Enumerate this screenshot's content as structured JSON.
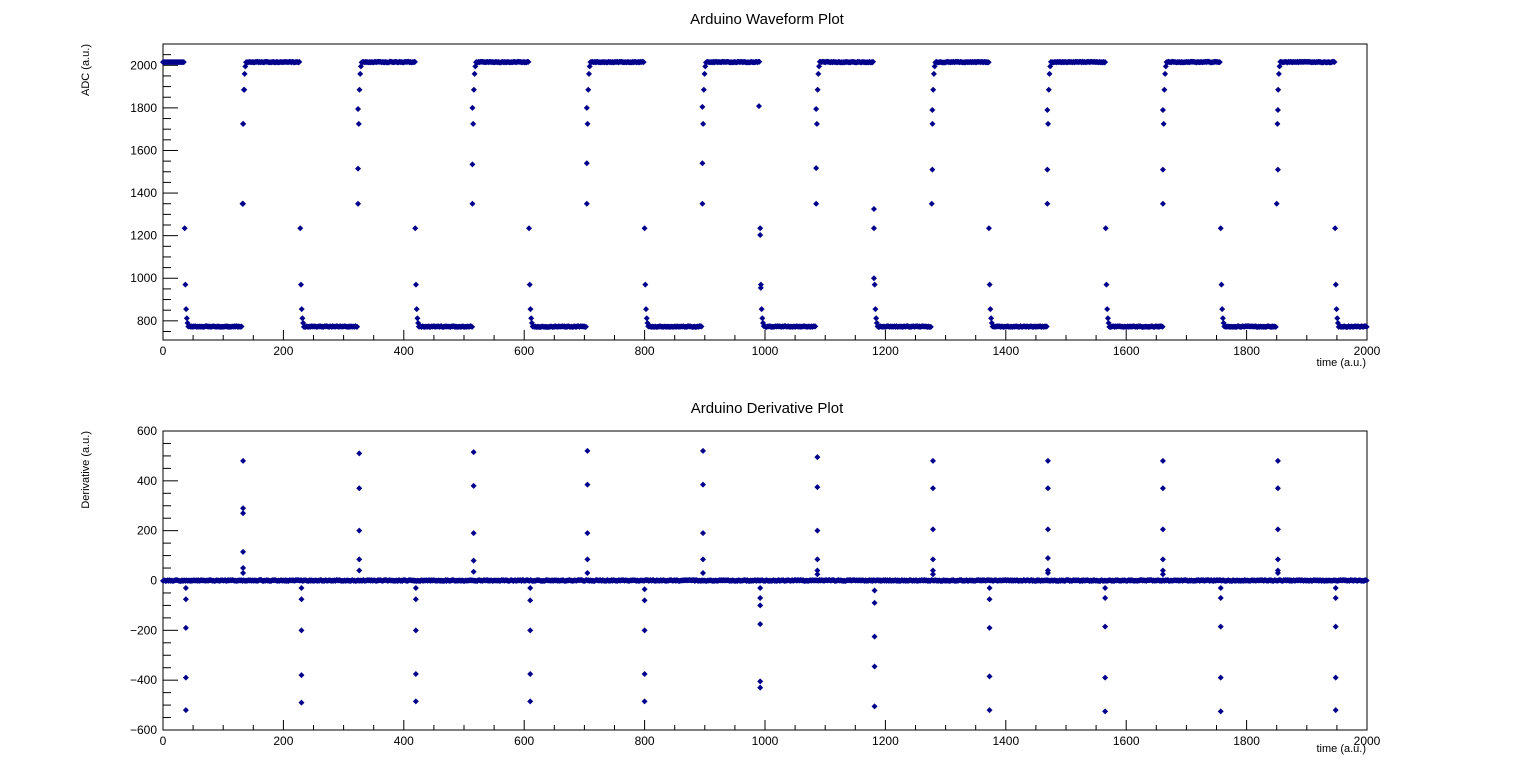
{
  "colors": {
    "marker": "#00008B",
    "frame": "#000000",
    "background": "#ffffff"
  },
  "chart_data": [
    {
      "type": "scatter",
      "title": "Arduino Waveform Plot",
      "xlabel": "time (a.u.)",
      "ylabel": "ADC (a.u.)",
      "xlim": [
        0,
        2000
      ],
      "ylim": [
        710,
        2100
      ],
      "xticks": [
        0,
        200,
        400,
        600,
        800,
        1000,
        1200,
        1400,
        1600,
        1800,
        2000
      ],
      "yticks": [
        800,
        1000,
        1200,
        1400,
        1600,
        1800,
        2000
      ],
      "xtick_labels": [
        "0",
        "200",
        "400",
        "600",
        "800",
        "1000",
        "1200",
        "1400",
        "1600",
        "1800",
        "2000"
      ],
      "ytick_labels": [
        "800",
        "1000",
        "1200",
        "1400",
        "1600",
        "1800",
        "2000"
      ],
      "grid": false,
      "waveform": {
        "high_level": 2015,
        "low_level": 773,
        "fall_times": [
          36,
          228,
          419,
          608,
          800,
          992,
          1181,
          1372,
          1566,
          1757,
          1947
        ],
        "rise_times": [
          132,
          324,
          514,
          704,
          896,
          1085,
          1277,
          1469,
          1661,
          1850
        ],
        "fall_transition_values": [
          1235,
          970,
          855,
          812,
          790
        ],
        "rise_transition_values": [
          1350,
          1725,
          1885,
          1960,
          1995
        ],
        "spike_points": [
          {
            "x": 133,
            "y": 1350
          },
          {
            "x": 133,
            "y": 1725
          },
          {
            "x": 135,
            "y": 1885
          },
          {
            "x": 324,
            "y": 1515
          },
          {
            "x": 324,
            "y": 1795
          },
          {
            "x": 514,
            "y": 1535
          },
          {
            "x": 514,
            "y": 1800
          },
          {
            "x": 704,
            "y": 1540
          },
          {
            "x": 704,
            "y": 1800
          },
          {
            "x": 896,
            "y": 1540
          },
          {
            "x": 896,
            "y": 1805
          },
          {
            "x": 990,
            "y": 1808
          },
          {
            "x": 992,
            "y": 1203
          },
          {
            "x": 993,
            "y": 955
          },
          {
            "x": 1085,
            "y": 1517
          },
          {
            "x": 1085,
            "y": 1795
          },
          {
            "x": 1181,
            "y": 1325
          },
          {
            "x": 1181,
            "y": 1000
          },
          {
            "x": 1278,
            "y": 1510
          },
          {
            "x": 1278,
            "y": 1790
          },
          {
            "x": 1469,
            "y": 1510
          },
          {
            "x": 1469,
            "y": 1790
          },
          {
            "x": 1661,
            "y": 1510
          },
          {
            "x": 1661,
            "y": 1790
          },
          {
            "x": 1852,
            "y": 1510
          },
          {
            "x": 1852,
            "y": 1790
          }
        ]
      }
    },
    {
      "type": "scatter",
      "title": "Arduino Derivative Plot",
      "xlabel": "time (a.u.)",
      "ylabel": "Derivative (a.u.)",
      "xlim": [
        0,
        2000
      ],
      "ylim": [
        -600,
        600
      ],
      "xticks": [
        0,
        200,
        400,
        600,
        800,
        1000,
        1200,
        1400,
        1600,
        1800,
        2000
      ],
      "yticks": [
        -600,
        -400,
        -200,
        0,
        200,
        400,
        600
      ],
      "xtick_labels": [
        "0",
        "200",
        "400",
        "600",
        "800",
        "1000",
        "1200",
        "1400",
        "1600",
        "1800",
        "2000"
      ],
      "ytick_labels": [
        "−600",
        "−400",
        "−200",
        "0",
        "200",
        "400",
        "600"
      ],
      "grid": false,
      "baseline": 0,
      "positive_spikes": [
        {
          "x": 133,
          "values": [
            480,
            290,
            270,
            115,
            50,
            30
          ]
        },
        {
          "x": 326,
          "values": [
            510,
            370,
            200,
            85,
            40
          ]
        },
        {
          "x": 516,
          "values": [
            515,
            380,
            190,
            80,
            35
          ]
        },
        {
          "x": 705,
          "values": [
            520,
            385,
            190,
            85,
            30
          ]
        },
        {
          "x": 897,
          "values": [
            520,
            385,
            190,
            85,
            30
          ]
        },
        {
          "x": 1087,
          "values": [
            495,
            375,
            200,
            85,
            40,
            25
          ]
        },
        {
          "x": 1279,
          "values": [
            480,
            370,
            205,
            85,
            40,
            25
          ]
        },
        {
          "x": 1470,
          "values": [
            480,
            370,
            205,
            90,
            40,
            30
          ]
        },
        {
          "x": 1661,
          "values": [
            480,
            370,
            205,
            85,
            40,
            25
          ]
        },
        {
          "x": 1852,
          "values": [
            480,
            370,
            205,
            85,
            40,
            30
          ]
        }
      ],
      "negative_spikes": [
        {
          "x": 38,
          "values": [
            -520,
            -390,
            -190,
            -75,
            -30
          ]
        },
        {
          "x": 230,
          "values": [
            -490,
            -380,
            -200,
            -75,
            -30
          ]
        },
        {
          "x": 420,
          "values": [
            -485,
            -375,
            -200,
            -75,
            -30
          ]
        },
        {
          "x": 610,
          "values": [
            -485,
            -375,
            -200,
            -80,
            -30
          ]
        },
        {
          "x": 800,
          "values": [
            -485,
            -375,
            -200,
            -80,
            -35
          ]
        },
        {
          "x": 992,
          "values": [
            -430,
            -405,
            -175,
            -100,
            -70,
            -30
          ]
        },
        {
          "x": 1182,
          "values": [
            -505,
            -345,
            -225,
            -90,
            -40
          ]
        },
        {
          "x": 1373,
          "values": [
            -520,
            -385,
            -190,
            -75,
            -30
          ]
        },
        {
          "x": 1565,
          "values": [
            -525,
            -390,
            -185,
            -70,
            -30
          ]
        },
        {
          "x": 1757,
          "values": [
            -525,
            -390,
            -185,
            -70,
            -30
          ]
        },
        {
          "x": 1948,
          "values": [
            -520,
            -390,
            -185,
            -70,
            -30
          ]
        }
      ]
    }
  ]
}
